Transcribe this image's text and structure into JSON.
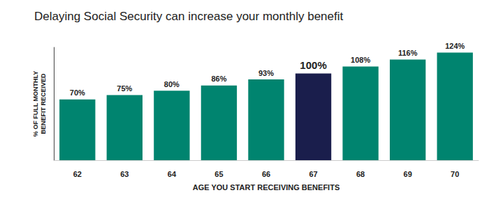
{
  "chart_data": {
    "type": "bar",
    "title": "Delaying Social Security can increase your monthly benefit",
    "x_label": "AGE YOU START RECEIVING BENEFITS",
    "y_label": "% OF FULL MONTHLY\nBENEFIT RECEIVED",
    "categories": [
      "62",
      "63",
      "64",
      "65",
      "66",
      "67",
      "68",
      "69",
      "70"
    ],
    "values": [
      70,
      75,
      80,
      86,
      93,
      100,
      108,
      116,
      124
    ],
    "value_labels": [
      "70%",
      "75%",
      "80%",
      "86%",
      "93%",
      "100%",
      "108%",
      "116%",
      "124%"
    ],
    "colors": [
      "#00846f",
      "#00846f",
      "#00846f",
      "#00846f",
      "#00846f",
      "#1a1e4c",
      "#00846f",
      "#00846f",
      "#00846f"
    ],
    "ylim": [
      0,
      130
    ],
    "grid": false,
    "data_labels": true,
    "tick_labels": "x"
  }
}
